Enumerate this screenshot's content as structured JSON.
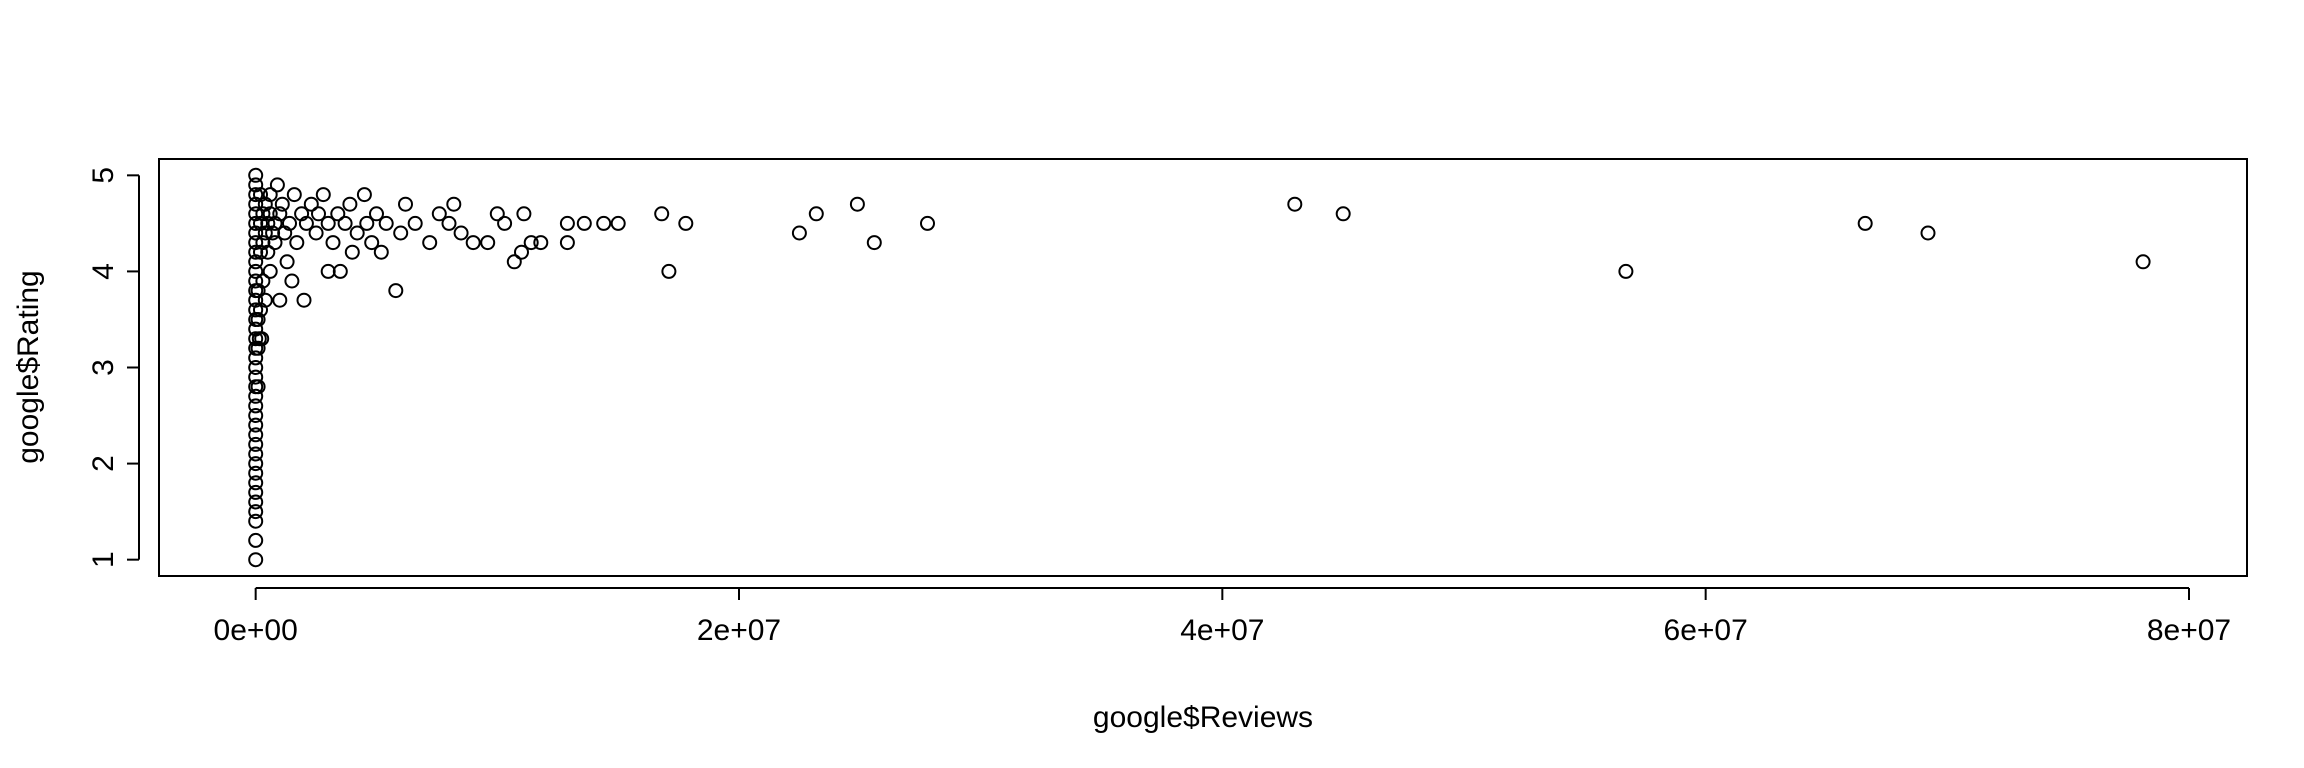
{
  "chart_data": {
    "type": "scatter",
    "title": "",
    "xlabel": "google$Reviews",
    "ylabel": "google$Rating",
    "xlim": [
      -4000000,
      82400000
    ],
    "ylim": [
      0.83,
      5.17
    ],
    "x_ticks": [
      0,
      20000000,
      40000000,
      60000000,
      80000000
    ],
    "x_tick_labels": [
      "0e+00",
      "2e+07",
      "4e+07",
      "6e+07",
      "8e+07"
    ],
    "y_ticks": [
      1,
      2,
      3,
      4,
      5
    ],
    "y_tick_labels": [
      "1",
      "2",
      "3",
      "4",
      "5"
    ],
    "grid": false,
    "legend": "none",
    "points": [
      [
        0,
        1.0
      ],
      [
        0,
        1.2
      ],
      [
        0,
        1.4
      ],
      [
        0,
        1.5
      ],
      [
        0,
        1.6
      ],
      [
        0,
        1.7
      ],
      [
        0,
        1.8
      ],
      [
        0,
        1.9
      ],
      [
        0,
        2.0
      ],
      [
        0,
        2.1
      ],
      [
        0,
        2.2
      ],
      [
        0,
        2.3
      ],
      [
        0,
        2.4
      ],
      [
        0,
        2.5
      ],
      [
        0,
        2.6
      ],
      [
        0,
        2.7
      ],
      [
        0,
        2.8
      ],
      [
        0,
        2.9
      ],
      [
        0,
        3.0
      ],
      [
        0,
        3.1
      ],
      [
        0,
        3.2
      ],
      [
        0,
        3.3
      ],
      [
        0,
        3.4
      ],
      [
        0,
        3.5
      ],
      [
        0,
        3.6
      ],
      [
        0,
        3.7
      ],
      [
        0,
        3.8
      ],
      [
        0,
        3.9
      ],
      [
        0,
        4.0
      ],
      [
        0,
        4.1
      ],
      [
        0,
        4.2
      ],
      [
        0,
        4.3
      ],
      [
        0,
        4.4
      ],
      [
        0,
        4.5
      ],
      [
        0,
        4.6
      ],
      [
        0,
        4.7
      ],
      [
        0,
        4.8
      ],
      [
        0,
        4.9
      ],
      [
        0,
        5.0
      ],
      [
        100000,
        2.8
      ],
      [
        100000,
        3.2
      ],
      [
        100000,
        3.5
      ],
      [
        100000,
        3.8
      ],
      [
        150000,
        3.3
      ],
      [
        200000,
        3.6
      ],
      [
        250000,
        3.3
      ],
      [
        300000,
        3.9
      ],
      [
        400000,
        3.7
      ],
      [
        600000,
        4.0
      ],
      [
        200000,
        4.2
      ],
      [
        200000,
        4.5
      ],
      [
        200000,
        4.8
      ],
      [
        300000,
        4.6
      ],
      [
        300000,
        4.3
      ],
      [
        400000,
        4.7
      ],
      [
        400000,
        4.4
      ],
      [
        500000,
        4.5
      ],
      [
        500000,
        4.2
      ],
      [
        600000,
        4.6
      ],
      [
        600000,
        4.8
      ],
      [
        700000,
        4.4
      ],
      [
        800000,
        4.5
      ],
      [
        800000,
        4.3
      ],
      [
        900000,
        4.9
      ],
      [
        1000000,
        4.6
      ],
      [
        1000000,
        3.7
      ],
      [
        1100000,
        4.7
      ],
      [
        1200000,
        4.4
      ],
      [
        1300000,
        4.1
      ],
      [
        1400000,
        4.5
      ],
      [
        1500000,
        3.9
      ],
      [
        1600000,
        4.8
      ],
      [
        1700000,
        4.3
      ],
      [
        1900000,
        4.6
      ],
      [
        2000000,
        3.7
      ],
      [
        2100000,
        4.5
      ],
      [
        2300000,
        4.7
      ],
      [
        2500000,
        4.4
      ],
      [
        2600000,
        4.6
      ],
      [
        2800000,
        4.8
      ],
      [
        3000000,
        4.0
      ],
      [
        3000000,
        4.5
      ],
      [
        3200000,
        4.3
      ],
      [
        3400000,
        4.6
      ],
      [
        3500000,
        4.0
      ],
      [
        3700000,
        4.5
      ],
      [
        3900000,
        4.7
      ],
      [
        4000000,
        4.2
      ],
      [
        4200000,
        4.4
      ],
      [
        4500000,
        4.8
      ],
      [
        4600000,
        4.5
      ],
      [
        4800000,
        4.3
      ],
      [
        5000000,
        4.6
      ],
      [
        5200000,
        4.2
      ],
      [
        5400000,
        4.5
      ],
      [
        5800000,
        3.8
      ],
      [
        6000000,
        4.4
      ],
      [
        6200000,
        4.7
      ],
      [
        6600000,
        4.5
      ],
      [
        7200000,
        4.3
      ],
      [
        7600000,
        4.6
      ],
      [
        8000000,
        4.5
      ],
      [
        8200000,
        4.7
      ],
      [
        8500000,
        4.4
      ],
      [
        9000000,
        4.3
      ],
      [
        9600000,
        4.3
      ],
      [
        10000000,
        4.6
      ],
      [
        10300000,
        4.5
      ],
      [
        10700000,
        4.1
      ],
      [
        11000000,
        4.2
      ],
      [
        11100000,
        4.6
      ],
      [
        11400000,
        4.3
      ],
      [
        11800000,
        4.3
      ],
      [
        12900000,
        4.5
      ],
      [
        12900000,
        4.3
      ],
      [
        13600000,
        4.5
      ],
      [
        14400000,
        4.5
      ],
      [
        15000000,
        4.5
      ],
      [
        16800000,
        4.6
      ],
      [
        17100000,
        4.0
      ],
      [
        17800000,
        4.5
      ],
      [
        22500000,
        4.4
      ],
      [
        23200000,
        4.6
      ],
      [
        24900000,
        4.7
      ],
      [
        25600000,
        4.3
      ],
      [
        27800000,
        4.5
      ],
      [
        43000000,
        4.7
      ],
      [
        45000000,
        4.6
      ],
      [
        56700000,
        4.0
      ],
      [
        66600000,
        4.5
      ],
      [
        69200000,
        4.4
      ],
      [
        78100000,
        4.1
      ]
    ]
  }
}
